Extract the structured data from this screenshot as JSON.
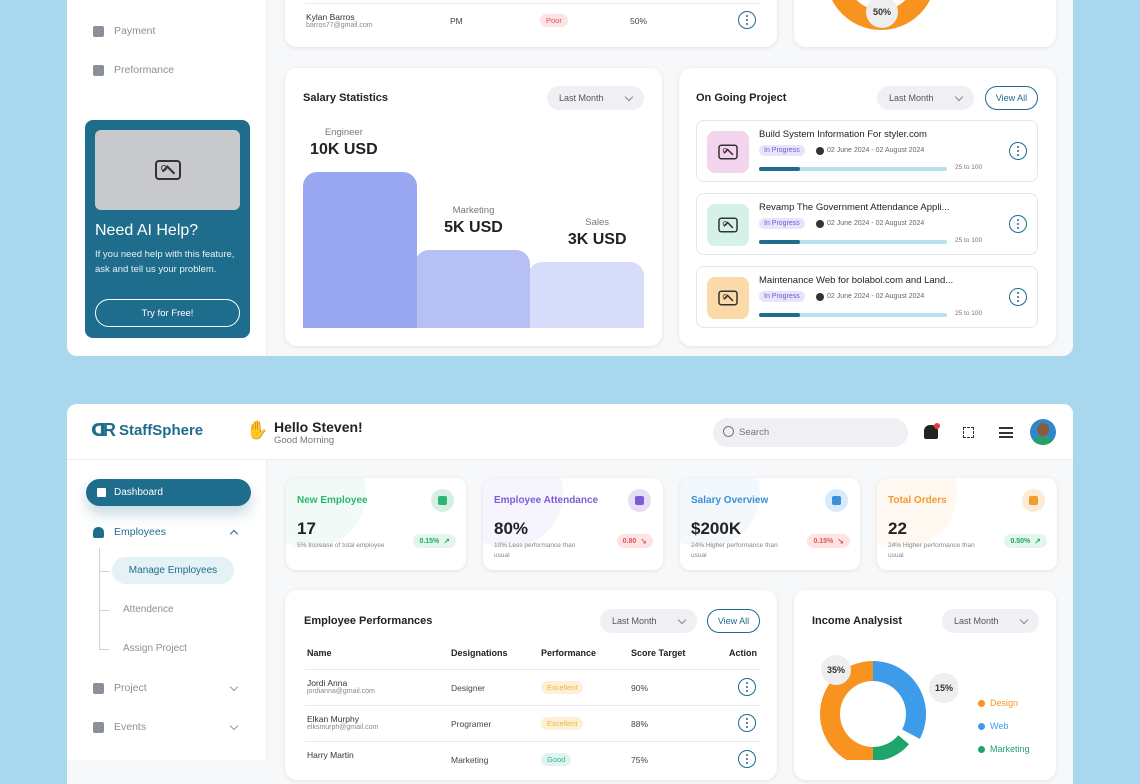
{
  "top": {
    "sidebar": {
      "payment": "Payment",
      "performance": "Preformance"
    },
    "ai_help": {
      "title": "Need AI Help?",
      "text": "If you need help with this feature, ask and tell us your problem.",
      "button": "Try for Free!"
    },
    "top_row": {
      "name": "Kylan Barros",
      "email": "barros77@gmail.com",
      "designation": "PM",
      "performance": "Poor",
      "target": "50%"
    },
    "pie_top_label": "50%",
    "salary": {
      "title": "Salary Statistics",
      "filter": "Last Month",
      "chart_data": {
        "type": "bar",
        "categories": [
          "Engineer",
          "Marketing",
          "Sales"
        ],
        "values": [
          10,
          5,
          3
        ],
        "value_labels": [
          "10K USD",
          "5K USD",
          "3K USD"
        ]
      }
    },
    "ongoing": {
      "title": "On Going Project",
      "filter": "Last Month",
      "view_all": "View All",
      "projects": [
        {
          "title": "Build System Information For styler.com",
          "status": "In Progress",
          "dates": "02 June 2024 - 02 August 2024",
          "progress_text": "25 to 100",
          "progress": 0.25,
          "color": "#f2d5ec"
        },
        {
          "title": "Revamp The Government Attendance Appli...",
          "status": "In Progress",
          "dates": "02 June 2024 - 02 August 2024",
          "progress_text": "25 to 100",
          "progress": 0.25,
          "color": "#d6f1e6"
        },
        {
          "title": "Maintenance Web for bolabol.com and Land...",
          "status": "In Progress",
          "dates": "02 June 2024 - 02 August 2024",
          "progress_text": "25 to 100",
          "progress": 0.25,
          "color": "#fbd9a9"
        }
      ]
    }
  },
  "bottom": {
    "brand": "StaffSphere",
    "greeting": "Hello Steven!",
    "sub_greeting": "Good Morning",
    "search_placeholder": "Search",
    "sidebar": {
      "dashboard": "Dashboard",
      "employees": "Employees",
      "manage": "Manage Employees",
      "attendence": "Attendence",
      "assign": "Assign Project",
      "project": "Project",
      "events": "Events"
    },
    "stats": [
      {
        "title": "New Employee",
        "value": "17",
        "desc": "5% Increase of total employee",
        "badge": "0.15%",
        "color": "#2bb673",
        "badge_bg": "#e3f6ec",
        "trend": "up"
      },
      {
        "title": "Employee Attendance",
        "value": "80%",
        "desc": "10% Less performance than usual",
        "badge": "0.80",
        "color": "#7b5cd6",
        "badge_bg": "#fde3e3",
        "trend": "down"
      },
      {
        "title": "Salary Overview",
        "value": "$200K",
        "desc": "24% Higher performance than usual",
        "badge": "0.15%",
        "color": "#3b8fd9",
        "badge_bg": "#fde3e3",
        "trend": "down"
      },
      {
        "title": "Total Orders",
        "value": "22",
        "desc": "24% Higher performance than usual",
        "badge": "0.50%",
        "color": "#f39b2e",
        "badge_bg": "#e3f6ec",
        "trend": "up"
      }
    ],
    "perf": {
      "title": "Employee Performances",
      "filter": "Last Month",
      "view_all": "View All",
      "headers": [
        "Name",
        "Designations",
        "Performance",
        "Score Target",
        "Action"
      ],
      "rows": [
        {
          "name": "Jordi Anna",
          "email": "jordianna@gmail.com",
          "designation": "Designer",
          "performance": "Excellent",
          "target": "90%"
        },
        {
          "name": "Elkan Murphy",
          "email": "elksmurph@gmail.com",
          "designation": "Programer",
          "performance": "Excellent",
          "target": "88%"
        },
        {
          "name": "Harry Martin",
          "email": "",
          "designation": "Marketing",
          "performance": "Good",
          "target": "75%"
        }
      ]
    },
    "income": {
      "title": "Income Analysist",
      "filter": "Last Month",
      "chart_data": {
        "type": "pie",
        "categories": [
          "Design",
          "Web",
          "Marketing"
        ],
        "values": [
          50,
          35,
          15
        ],
        "labels": [
          "35%",
          "15%"
        ],
        "colors": [
          "#f7931e",
          "#3d9be9",
          "#1fa56b"
        ]
      }
    }
  }
}
